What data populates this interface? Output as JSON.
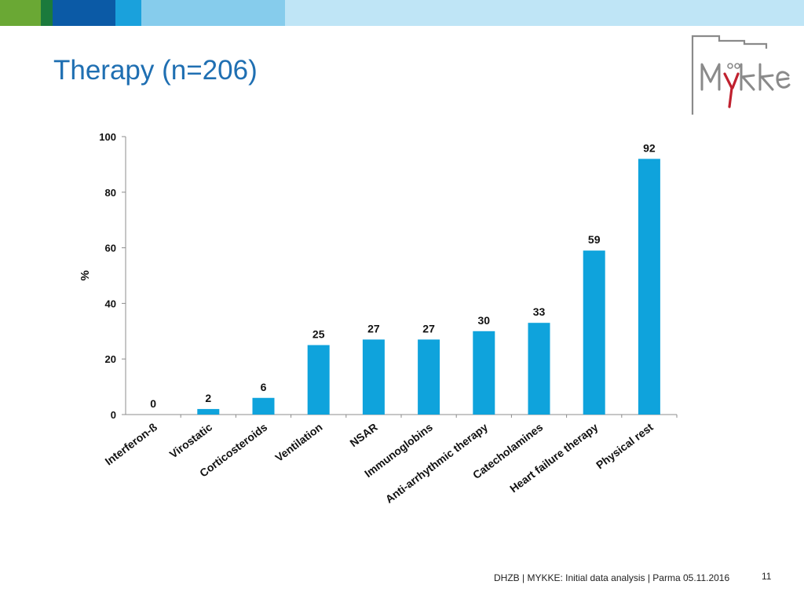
{
  "header": {
    "bar_colors": [
      "#6aa834",
      "#1b7a3c",
      "#0b5aa6",
      "#1aa1dc",
      "#86ccec",
      "#bfe5f6"
    ],
    "title": "Therapy (n=206)"
  },
  "logo": {
    "text": "MYKKE",
    "accent": "#c0212f"
  },
  "chart_data": {
    "type": "bar",
    "categories": [
      "Interferon-ß",
      "Virostatic",
      "Corticosteroids",
      "Ventilation",
      "NSAR",
      "Immunoglobins",
      "Anti-arrhythmic therapy",
      "Catecholamines",
      "Heart failure therapy",
      "Physical rest"
    ],
    "values": [
      0,
      2,
      6,
      25,
      27,
      27,
      30,
      33,
      59,
      92
    ],
    "value_labels": [
      "0",
      "2",
      "6",
      "25",
      "27",
      "27",
      "30",
      "33",
      "59",
      "92"
    ],
    "ylabel": "%",
    "ylim": [
      0,
      100
    ],
    "yticks": [
      "0",
      "20",
      "40",
      "60",
      "80",
      "100"
    ],
    "bar_color": "#0fa3dc",
    "grid": false
  },
  "footer": {
    "text": "DHZB | MYKKE: Initial data analysis | Parma 05.11.2016",
    "page": "11"
  }
}
